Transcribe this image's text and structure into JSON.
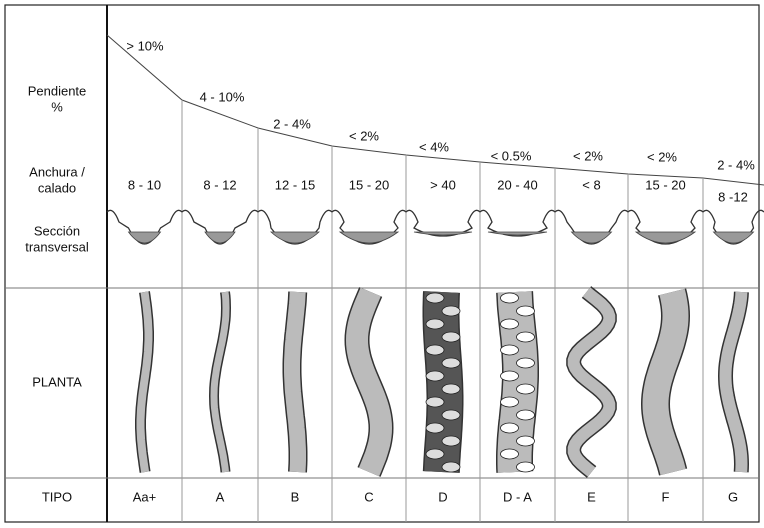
{
  "row_labels": {
    "slope": [
      "Pendiente",
      "%"
    ],
    "width": [
      "Anchura /",
      "calado"
    ],
    "section": [
      "Sección",
      "transversal"
    ],
    "plan": [
      "PLANTA"
    ],
    "type": [
      "TIPO"
    ]
  },
  "columns": [
    {
      "type": "Aa+",
      "slope": "> 10%",
      "width": "8 - 10"
    },
    {
      "type": "A",
      "slope": "4 - 10%",
      "width": "8 - 12"
    },
    {
      "type": "B",
      "slope": "2 - 4%",
      "width": "12 - 15"
    },
    {
      "type": "C",
      "slope": "< 2%",
      "width": "15 - 20"
    },
    {
      "type": "D",
      "slope": "< 4%",
      "width": "> 40"
    },
    {
      "type": "D - A",
      "slope": "< 0.5%",
      "width": "20 - 40"
    },
    {
      "type": "E",
      "slope": "< 2%",
      "width": "< 8"
    },
    {
      "type": "F",
      "slope": "< 2%",
      "width": "15 - 20"
    },
    {
      "type": "G",
      "slope": "2 - 4%",
      "width": "8 -12"
    }
  ]
}
